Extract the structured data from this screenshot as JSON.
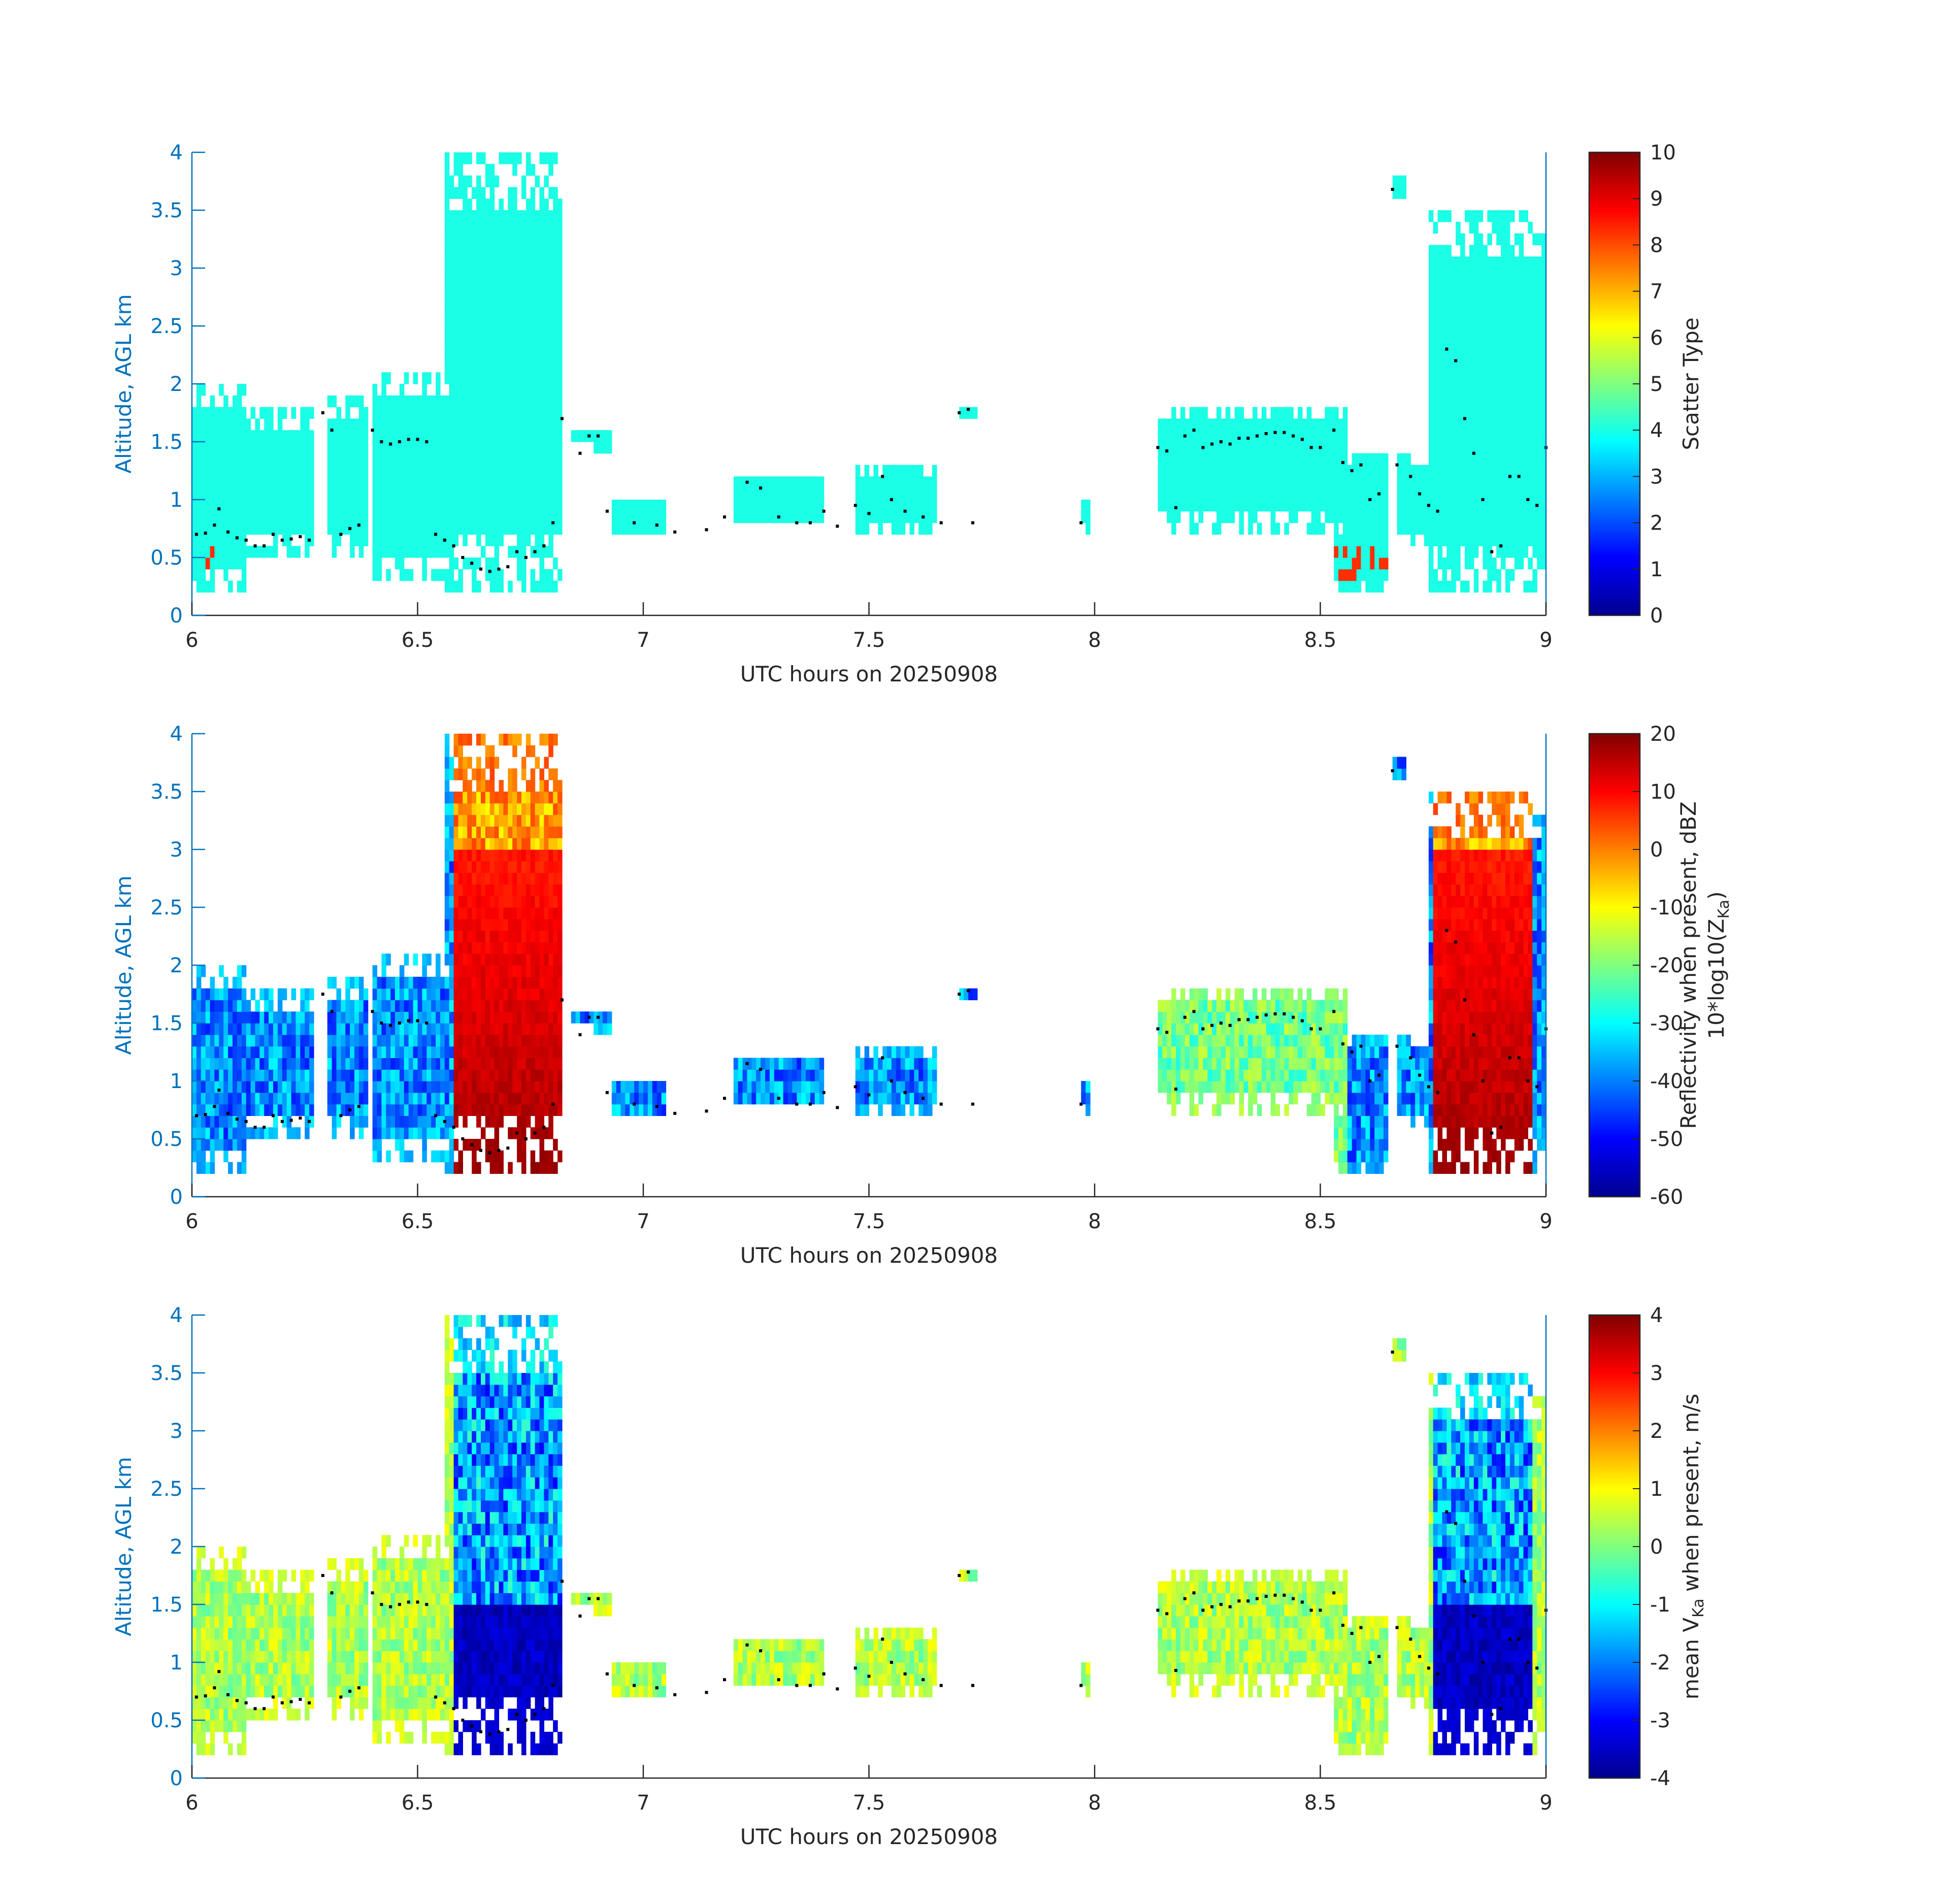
{
  "chart_data": [
    {
      "type": "heatmap",
      "title": "",
      "xlabel": "UTC hours on 20250908",
      "ylabel": "Altitude, AGL km",
      "colorbar_label": [
        "Scatter Type"
      ],
      "xlim": [
        6,
        9
      ],
      "ylim": [
        0,
        4
      ],
      "clim": [
        0,
        10
      ],
      "xticks": [
        "6",
        "6.5",
        "7",
        "7.5",
        "8",
        "8.5",
        "9"
      ],
      "yticks": [
        "0",
        "0.5",
        "1",
        "1.5",
        "2",
        "2.5",
        "3",
        "3.5",
        "4"
      ],
      "cticks": [
        "0",
        "1",
        "2",
        "3",
        "4",
        "5",
        "6",
        "7",
        "8",
        "9",
        "10"
      ],
      "colormap": "jet",
      "dominant_value": 4,
      "secondary_value": 8.3,
      "cloud_base_dots": true
    },
    {
      "type": "heatmap",
      "title": "",
      "xlabel": "UTC hours on 20250908",
      "ylabel": "Altitude, AGL km",
      "colorbar_label": [
        "Reflectivity when present, dBZ",
        "10*log10(Z",
        "Ka",
        ")"
      ],
      "xlim": [
        6,
        9
      ],
      "ylim": [
        0,
        4
      ],
      "clim": [
        -60,
        20
      ],
      "xticks": [
        "6",
        "6.5",
        "7",
        "7.5",
        "8",
        "8.5",
        "9"
      ],
      "yticks": [
        "0",
        "0.5",
        "1",
        "1.5",
        "2",
        "2.5",
        "3",
        "3.5",
        "4"
      ],
      "cticks": [
        "-60",
        "-50",
        "-40",
        "-30",
        "-20",
        "-10",
        "0",
        "10",
        "20"
      ],
      "colormap": "jet",
      "cloud_base_dots": true
    },
    {
      "type": "heatmap",
      "title": "",
      "xlabel": "UTC hours on 20250908",
      "ylabel": "Altitude, AGL km",
      "colorbar_label": [
        "mean V",
        "Ka",
        " when present, m/s"
      ],
      "xlim": [
        6,
        9
      ],
      "ylim": [
        0,
        4
      ],
      "clim": [
        -4,
        4
      ],
      "xticks": [
        "6",
        "6.5",
        "7",
        "7.5",
        "8",
        "8.5",
        "9"
      ],
      "yticks": [
        "0",
        "0.5",
        "1",
        "1.5",
        "2",
        "2.5",
        "3",
        "3.5",
        "4"
      ],
      "cticks": [
        "-4",
        "-3",
        "-2",
        "-1",
        "0",
        "1",
        "2",
        "3",
        "4"
      ],
      "colormap": "jet",
      "cloud_base_dots": true
    }
  ],
  "echo_regions": [
    {
      "x0": 6.0,
      "x1": 6.12,
      "y0": 0.2,
      "y1": 2.0
    },
    {
      "x0": 6.12,
      "x1": 6.27,
      "y0": 0.55,
      "y1": 1.8
    },
    {
      "x0": 6.3,
      "x1": 6.39,
      "y0": 0.55,
      "y1": 1.9
    },
    {
      "x0": 6.4,
      "x1": 6.58,
      "y0": 0.3,
      "y1": 2.1
    },
    {
      "x0": 6.56,
      "x1": 6.82,
      "y0": 0.2,
      "y1": 4.0
    },
    {
      "x0": 6.84,
      "x1": 6.93,
      "y0": 1.45,
      "y1": 1.65
    },
    {
      "x0": 6.93,
      "x1": 7.05,
      "y0": 0.7,
      "y1": 1.0
    },
    {
      "x0": 7.2,
      "x1": 7.4,
      "y0": 0.8,
      "y1": 1.2
    },
    {
      "x0": 7.47,
      "x1": 7.65,
      "y0": 0.75,
      "y1": 1.3
    },
    {
      "x0": 7.7,
      "x1": 7.74,
      "y0": 1.7,
      "y1": 1.85
    },
    {
      "x0": 7.97,
      "x1": 7.99,
      "y0": 0.75,
      "y1": 1.0
    },
    {
      "x0": 8.14,
      "x1": 8.56,
      "y0": 0.75,
      "y1": 1.85
    },
    {
      "x0": 8.53,
      "x1": 8.65,
      "y0": 0.2,
      "y1": 1.4
    },
    {
      "x0": 8.66,
      "x1": 8.69,
      "y0": 3.6,
      "y1": 3.85
    },
    {
      "x0": 8.67,
      "x1": 8.74,
      "y0": 0.6,
      "y1": 1.4
    },
    {
      "x0": 8.74,
      "x1": 9.0,
      "y0": 0.2,
      "y1": 3.5
    }
  ],
  "cloud_base_points": [
    [
      6.01,
      0.7
    ],
    [
      6.03,
      0.71
    ],
    [
      6.05,
      0.78
    ],
    [
      6.06,
      0.92
    ],
    [
      6.08,
      0.72
    ],
    [
      6.1,
      0.67
    ],
    [
      6.12,
      0.65
    ],
    [
      6.14,
      0.6
    ],
    [
      6.16,
      0.6
    ],
    [
      6.18,
      0.7
    ],
    [
      6.2,
      0.65
    ],
    [
      6.22,
      0.66
    ],
    [
      6.24,
      0.68
    ],
    [
      6.26,
      0.65
    ],
    [
      6.29,
      1.75
    ],
    [
      6.31,
      1.6
    ],
    [
      6.33,
      0.7
    ],
    [
      6.35,
      0.75
    ],
    [
      6.37,
      0.78
    ],
    [
      6.4,
      1.6
    ],
    [
      6.42,
      1.5
    ],
    [
      6.44,
      1.48
    ],
    [
      6.46,
      1.5
    ],
    [
      6.48,
      1.52
    ],
    [
      6.5,
      1.52
    ],
    [
      6.52,
      1.5
    ],
    [
      6.54,
      0.7
    ],
    [
      6.56,
      0.65
    ],
    [
      6.58,
      0.6
    ],
    [
      6.6,
      0.5
    ],
    [
      6.62,
      0.45
    ],
    [
      6.64,
      0.4
    ],
    [
      6.66,
      0.38
    ],
    [
      6.68,
      0.4
    ],
    [
      6.7,
      0.42
    ],
    [
      6.72,
      0.55
    ],
    [
      6.74,
      0.5
    ],
    [
      6.76,
      0.55
    ],
    [
      6.78,
      0.6
    ],
    [
      6.8,
      0.8
    ],
    [
      6.82,
      1.7
    ],
    [
      6.86,
      1.4
    ],
    [
      6.88,
      1.55
    ],
    [
      6.9,
      1.55
    ],
    [
      6.92,
      0.9
    ],
    [
      6.98,
      0.8
    ],
    [
      7.03,
      0.78
    ],
    [
      7.07,
      0.72
    ],
    [
      7.14,
      0.74
    ],
    [
      7.18,
      0.85
    ],
    [
      7.23,
      1.15
    ],
    [
      7.26,
      1.1
    ],
    [
      7.3,
      0.85
    ],
    [
      7.34,
      0.8
    ],
    [
      7.37,
      0.8
    ],
    [
      7.4,
      0.9
    ],
    [
      7.43,
      0.77
    ],
    [
      7.47,
      0.95
    ],
    [
      7.5,
      0.88
    ],
    [
      7.53,
      1.2
    ],
    [
      7.55,
      1.0
    ],
    [
      7.58,
      0.9
    ],
    [
      7.62,
      0.85
    ],
    [
      7.66,
      0.8
    ],
    [
      7.7,
      1.75
    ],
    [
      7.72,
      1.78
    ],
    [
      7.73,
      0.8
    ],
    [
      7.97,
      0.8
    ],
    [
      8.14,
      1.45
    ],
    [
      8.16,
      1.42
    ],
    [
      8.18,
      0.93
    ],
    [
      8.2,
      1.55
    ],
    [
      8.22,
      1.6
    ],
    [
      8.24,
      1.45
    ],
    [
      8.26,
      1.48
    ],
    [
      8.28,
      1.5
    ],
    [
      8.3,
      1.48
    ],
    [
      8.32,
      1.53
    ],
    [
      8.34,
      1.53
    ],
    [
      8.36,
      1.55
    ],
    [
      8.38,
      1.57
    ],
    [
      8.4,
      1.58
    ],
    [
      8.42,
      1.58
    ],
    [
      8.44,
      1.55
    ],
    [
      8.46,
      1.52
    ],
    [
      8.48,
      1.45
    ],
    [
      8.5,
      1.45
    ],
    [
      8.53,
      1.6
    ],
    [
      8.55,
      1.32
    ],
    [
      8.57,
      1.25
    ],
    [
      8.59,
      1.3
    ],
    [
      8.61,
      1.0
    ],
    [
      8.63,
      1.05
    ],
    [
      8.66,
      3.68
    ],
    [
      8.67,
      1.3
    ],
    [
      8.7,
      1.2
    ],
    [
      8.72,
      1.05
    ],
    [
      8.74,
      0.95
    ],
    [
      8.76,
      0.9
    ],
    [
      8.78,
      2.3
    ],
    [
      8.8,
      2.2
    ],
    [
      8.82,
      1.7
    ],
    [
      8.84,
      1.4
    ],
    [
      8.86,
      1.0
    ],
    [
      8.88,
      0.55
    ],
    [
      8.9,
      0.6
    ],
    [
      8.92,
      1.2
    ],
    [
      8.94,
      1.2
    ],
    [
      8.96,
      1.0
    ],
    [
      8.98,
      0.95
    ],
    [
      9.0,
      1.45
    ]
  ]
}
